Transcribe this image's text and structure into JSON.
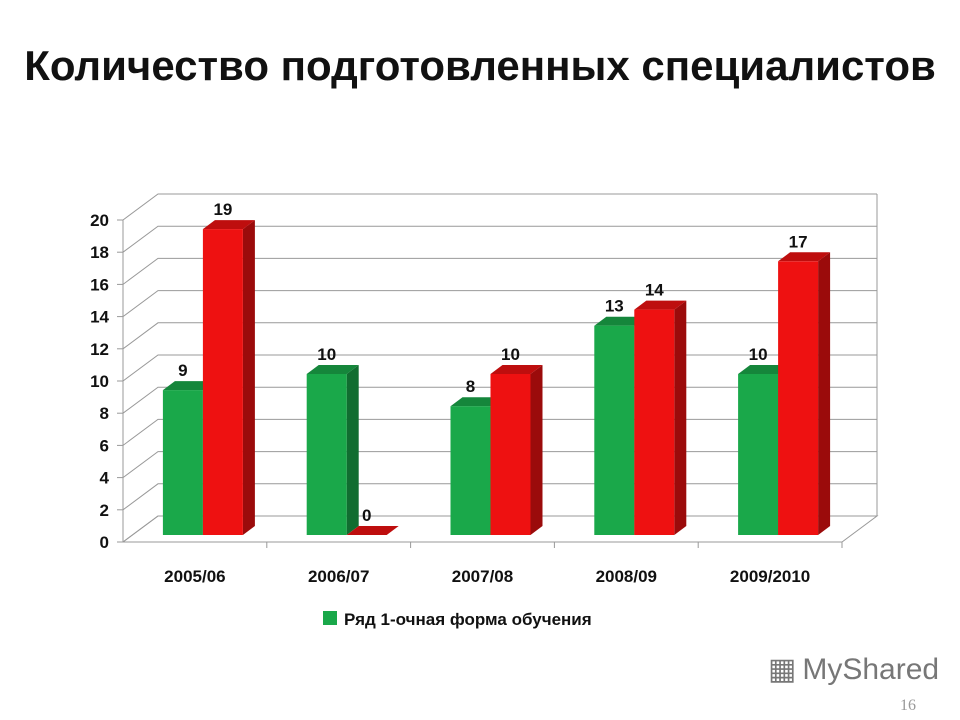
{
  "chart_data": {
    "type": "bar",
    "title": "Количество подготовленных специалистов",
    "categories": [
      "2005/06",
      "2006/07",
      "2007/08",
      "2008/09",
      "2009/2010"
    ],
    "series": [
      {
        "name": "Ряд 1-очная форма обучения",
        "values": [
          9,
          10,
          8,
          13,
          10
        ],
        "color": "#1aa84a"
      },
      {
        "values": [
          19,
          0,
          10,
          14,
          17
        ],
        "color": "#ee1111"
      }
    ],
    "ylim": [
      0,
      20
    ],
    "yticks": [
      0,
      2,
      4,
      6,
      8,
      10,
      12,
      14,
      16,
      18,
      20
    ],
    "grid": true,
    "legend": "bottom",
    "style": "3d"
  },
  "watermark": "MyShared",
  "page_number": "16"
}
